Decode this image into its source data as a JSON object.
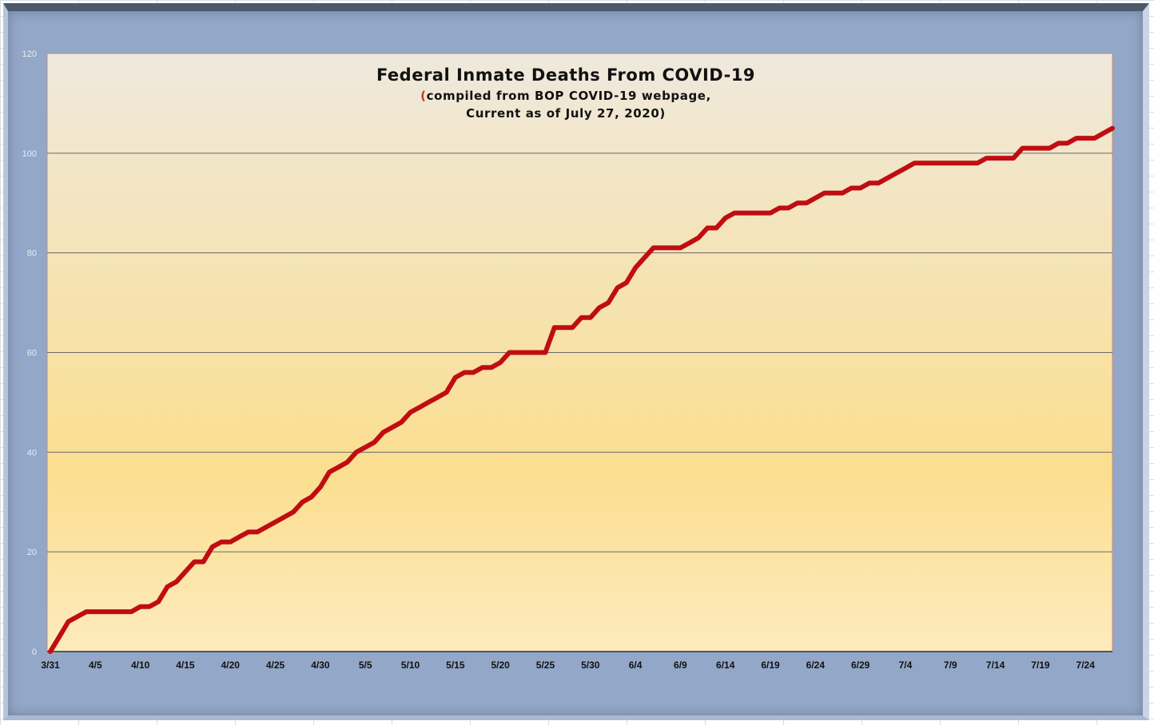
{
  "colors": {
    "line": "#c00d12",
    "plot_top": "#efe9dd",
    "plot_mid": "#fbde8f",
    "plot_bottom": "#fdebbd",
    "frame": "#93a7c8",
    "gridline": "#6a6a6a"
  },
  "chart_data": {
    "type": "line",
    "title": "Federal Inmate Deaths From COVID-19",
    "subtitle_line1_paren": "(",
    "subtitle_line1": "compiled from BOP COVID-19 webpage,",
    "subtitle_line2": "Current as of July 27, 2020)",
    "xlabel": "",
    "ylabel": "",
    "ylim": [
      0,
      120
    ],
    "yticks": [
      "0",
      "20",
      "40",
      "60",
      "80",
      "100",
      "120"
    ],
    "grid": true,
    "x_start_date": "3/31",
    "x_tick_labels": [
      "3/31",
      "4/5",
      "4/10",
      "4/15",
      "4/20",
      "4/25",
      "4/30",
      "5/5",
      "5/10",
      "5/15",
      "5/20",
      "5/25",
      "5/30",
      "6/4",
      "6/9",
      "6/14",
      "6/19",
      "6/24",
      "6/29",
      "7/4",
      "7/9",
      "7/14",
      "7/19",
      "7/24"
    ],
    "series": [
      {
        "values": [
          0,
          3,
          6,
          7,
          8,
          8,
          8,
          8,
          8,
          8,
          9,
          9,
          10,
          13,
          14,
          16,
          18,
          18,
          21,
          22,
          22,
          23,
          24,
          24,
          25,
          26,
          27,
          28,
          30,
          31,
          33,
          36,
          37,
          38,
          40,
          41,
          42,
          44,
          45,
          46,
          48,
          49,
          50,
          51,
          52,
          55,
          56,
          56,
          57,
          57,
          58,
          60,
          60,
          60,
          60,
          60,
          65,
          65,
          65,
          67,
          67,
          69,
          70,
          73,
          74,
          77,
          79,
          81,
          81,
          81,
          81,
          82,
          83,
          85,
          85,
          87,
          88,
          88,
          88,
          88,
          88,
          89,
          89,
          90,
          90,
          91,
          92,
          92,
          92,
          93,
          93,
          94,
          94,
          95,
          96,
          97,
          98,
          98,
          98,
          98,
          98,
          98,
          98,
          98,
          99,
          99,
          99,
          99,
          101,
          101,
          101,
          101,
          102,
          102,
          103,
          103,
          103,
          104,
          105
        ]
      }
    ]
  }
}
